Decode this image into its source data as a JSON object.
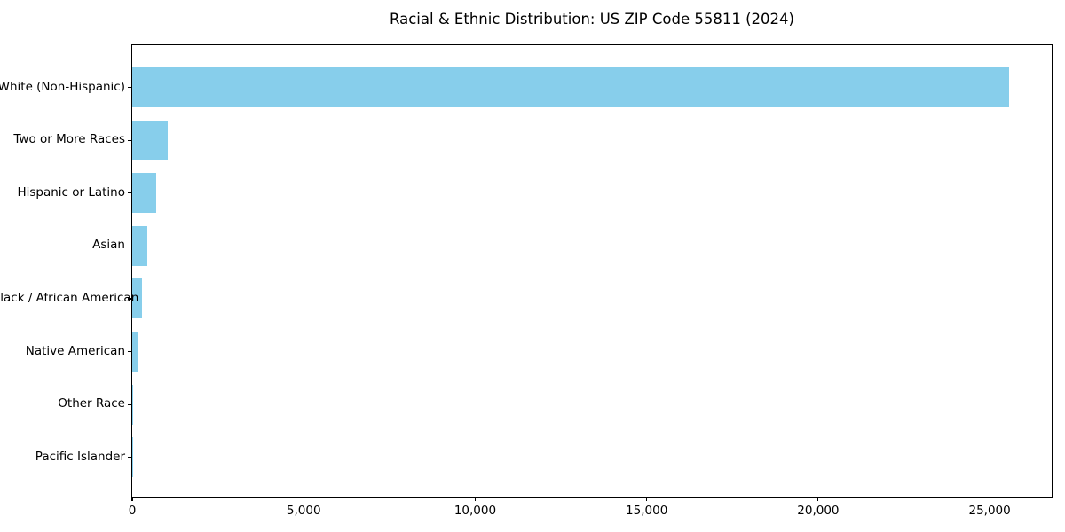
{
  "chart_data": {
    "type": "bar",
    "orientation": "horizontal",
    "title": "Racial & Ethnic Distribution: US ZIP Code 55811 (2024)",
    "categories": [
      "White (Non-Hispanic)",
      "Two or More Races",
      "Hispanic or Latino",
      "Asian",
      "Black / African American",
      "Native American",
      "Other Race",
      "Pacific Islander"
    ],
    "values": [
      25560,
      1040,
      700,
      440,
      290,
      155,
      30,
      5
    ],
    "xlabel": "",
    "ylabel": "",
    "xlim": [
      0,
      26860
    ],
    "xticks": [
      0,
      5000,
      10000,
      15000,
      20000,
      25000
    ],
    "xtick_labels": [
      "0",
      "5,000",
      "10,000",
      "15,000",
      "20,000",
      "25,000"
    ],
    "bar_color": "#87CEEB",
    "frame_color": "#000000",
    "background_color": "#ffffff",
    "grid": false,
    "legend": null
  }
}
